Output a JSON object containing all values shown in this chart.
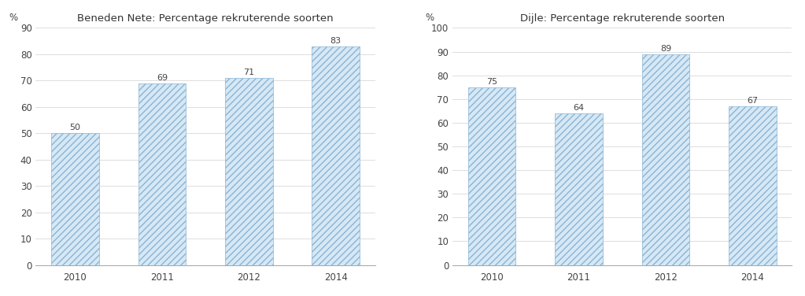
{
  "chart1": {
    "title": "Beneden Nete: Percentage rekruterende soorten",
    "ylabel": "%",
    "categories": [
      "2010",
      "2011",
      "2012",
      "2014"
    ],
    "values": [
      50,
      69,
      71,
      83
    ],
    "ylim": [
      0,
      90
    ],
    "yticks": [
      0,
      10,
      20,
      30,
      40,
      50,
      60,
      70,
      80,
      90
    ]
  },
  "chart2": {
    "title": "Dijle: Percentage rekruterende soorten",
    "ylabel": "%",
    "categories": [
      "2010",
      "2011",
      "2012",
      "2014"
    ],
    "values": [
      75,
      64,
      89,
      67
    ],
    "ylim": [
      0,
      100
    ],
    "yticks": [
      0,
      10,
      20,
      30,
      40,
      50,
      60,
      70,
      80,
      90,
      100
    ]
  },
  "bar_color_face": "#d6e8f5",
  "bar_color_edge": "#8ab4d4",
  "bar_width": 0.55,
  "hatch": "////",
  "label_fontsize": 8,
  "title_fontsize": 9.5,
  "axis_fontsize": 8.5,
  "background_color": "#ffffff",
  "grid_color": "#d8d8d8"
}
